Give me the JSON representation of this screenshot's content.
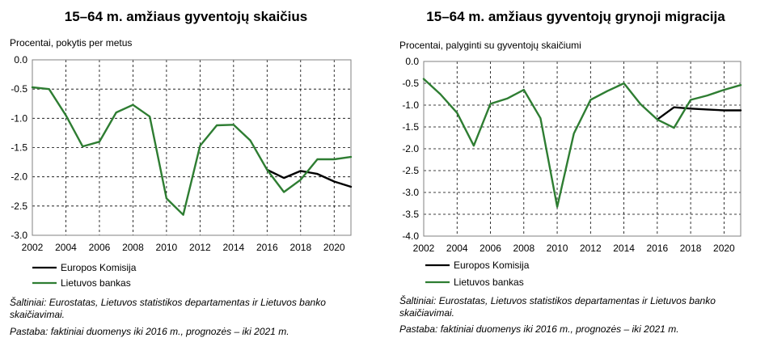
{
  "chart_data": [
    {
      "type": "line",
      "title": "15–64 m. amžiaus gyventojų skaičius",
      "ylabel": "Procentai, pokytis per metus",
      "ylim": [
        -3.0,
        0.0
      ],
      "yticks": [
        "0.0",
        "-0.5",
        "-1.0",
        "-1.5",
        "-2.0",
        "-2.5",
        "-3.0"
      ],
      "xlim": [
        2002,
        2021
      ],
      "xticks": [
        "2002",
        "2004",
        "2006",
        "2008",
        "2010",
        "2012",
        "2014",
        "2016",
        "2018",
        "2020"
      ],
      "grid": true,
      "legend_position": "bottom-left",
      "series": [
        {
          "name": "Europos Komisija",
          "color": "#000000",
          "x": [
            2016,
            2017,
            2018,
            2019,
            2020,
            2021
          ],
          "values": [
            -1.88,
            -2.02,
            -1.9,
            -1.95,
            -2.08,
            -2.17
          ]
        },
        {
          "name": "Lietuvos bankas",
          "color": "#2e7d32",
          "x": [
            2002,
            2003,
            2004,
            2005,
            2006,
            2007,
            2008,
            2009,
            2010,
            2011,
            2012,
            2013,
            2014,
            2015,
            2016,
            2017,
            2018,
            2019,
            2020,
            2021
          ],
          "values": [
            -0.47,
            -0.5,
            -0.95,
            -1.48,
            -1.4,
            -0.9,
            -0.77,
            -0.97,
            -2.37,
            -2.65,
            -1.47,
            -1.12,
            -1.11,
            -1.38,
            -1.88,
            -2.26,
            -2.05,
            -1.7,
            -1.7,
            -1.66
          ]
        }
      ],
      "source": "Šaltiniai: Eurostatas, Lietuvos statistikos departamentas ir Lietuvos banko skaičiavimai.",
      "source_line1": "Šaltiniai: Eurostatas, Lietuvos statistikos departamentas ir Lietuvos banko",
      "source_line2": "skaičiavimai.",
      "note": "Pastaba: faktiniai duomenys iki 2016 m., prognozės – iki 2021 m."
    },
    {
      "type": "line",
      "title": "15–64 m. amžiaus gyventojų grynoji migracija",
      "ylabel": "Procentai, palyginti su gyventojų skaičiumi",
      "ylim": [
        -4.0,
        0.0
      ],
      "yticks": [
        "0.0",
        "-0.5",
        "-1.0",
        "-1.5",
        "-2.0",
        "-2.5",
        "-3.0",
        "-3.5",
        "-4.0"
      ],
      "xlim": [
        2002,
        2021
      ],
      "xticks": [
        "2002",
        "2004",
        "2006",
        "2008",
        "2010",
        "2012",
        "2014",
        "2016",
        "2018",
        "2020"
      ],
      "grid": true,
      "legend_position": "bottom-left",
      "series": [
        {
          "name": "Europos Komisija",
          "color": "#000000",
          "x": [
            2016,
            2017,
            2018,
            2019,
            2020,
            2021
          ],
          "values": [
            -1.33,
            -1.05,
            -1.08,
            -1.1,
            -1.12,
            -1.12
          ]
        },
        {
          "name": "Lietuvos bankas",
          "color": "#2e7d32",
          "x": [
            2002,
            2003,
            2004,
            2005,
            2006,
            2007,
            2008,
            2009,
            2010,
            2011,
            2012,
            2013,
            2014,
            2015,
            2016,
            2017,
            2018,
            2019,
            2020,
            2021
          ],
          "values": [
            -0.4,
            -0.75,
            -1.18,
            -1.93,
            -0.97,
            -0.85,
            -0.65,
            -1.3,
            -3.33,
            -1.65,
            -0.88,
            -0.68,
            -0.5,
            -0.98,
            -1.33,
            -1.52,
            -0.88,
            -0.78,
            -0.65,
            -0.54
          ]
        }
      ],
      "source": "Šaltiniai: Eurostatas, Lietuvos statistikos departamentas ir Lietuvos banko skaičiavimai.",
      "source_line1": "Šaltiniai: Eurostatas, Lietuvos statistikos departamentas ir Lietuvos banko",
      "source_line2": "skaičiavimai.",
      "note": "Pastaba: faktiniai duomenys iki 2016 m., prognozės – iki 2021 m."
    }
  ]
}
